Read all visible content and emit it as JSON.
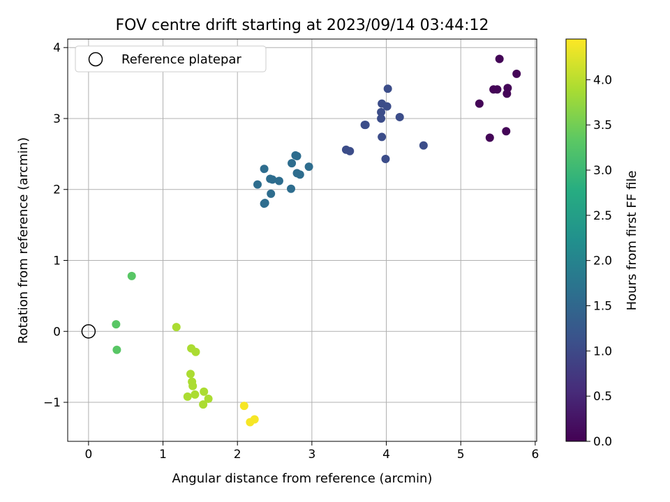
{
  "chart_data": {
    "type": "scatter",
    "title": "FOV centre drift starting at 2023/09/14 03:44:12",
    "xlabel": "Angular distance from reference (arcmin)",
    "ylabel": "Rotation from reference (arcmin)",
    "xlim": [
      -0.28,
      6.02
    ],
    "ylim": [
      -1.55,
      4.12
    ],
    "x_ticks": [
      0,
      1,
      2,
      3,
      4,
      5,
      6
    ],
    "x_tick_labels": [
      "0",
      "1",
      "2",
      "3",
      "4",
      "5",
      "6"
    ],
    "y_ticks": [
      -1,
      0,
      1,
      2,
      3,
      4
    ],
    "y_tick_labels": [
      "−1",
      "0",
      "1",
      "2",
      "3",
      "4"
    ],
    "grid": true,
    "legend": {
      "placement": "top-left",
      "entries": [
        "Reference platepar"
      ]
    },
    "reference_point": {
      "name": "Reference platepar",
      "x": 0,
      "y": 0,
      "marker": "hollow-circle"
    },
    "colorbar": {
      "label": "Hours from first FF file",
      "colormap": "viridis",
      "range": [
        0.0,
        4.45
      ],
      "ticks": [
        0.0,
        0.5,
        1.0,
        1.5,
        2.0,
        2.5,
        3.0,
        3.5,
        4.0
      ],
      "tick_labels": [
        "0.0",
        "0.5",
        "1.0",
        "1.5",
        "2.0",
        "2.5",
        "3.0",
        "3.5",
        "4.0"
      ]
    },
    "points": [
      {
        "x": 5.52,
        "y": 3.84,
        "c": 0.05
      },
      {
        "x": 5.75,
        "y": 3.63,
        "c": 0.05
      },
      {
        "x": 5.44,
        "y": 3.41,
        "c": 0.05
      },
      {
        "x": 5.49,
        "y": 3.41,
        "c": 0.05
      },
      {
        "x": 5.63,
        "y": 3.43,
        "c": 0.05
      },
      {
        "x": 5.62,
        "y": 3.35,
        "c": 0.05
      },
      {
        "x": 5.25,
        "y": 3.21,
        "c": 0.05
      },
      {
        "x": 5.61,
        "y": 2.82,
        "c": 0.05
      },
      {
        "x": 5.39,
        "y": 2.73,
        "c": 0.05
      },
      {
        "x": 4.02,
        "y": 3.42,
        "c": 1.05
      },
      {
        "x": 3.94,
        "y": 3.21,
        "c": 1.05
      },
      {
        "x": 4.01,
        "y": 3.17,
        "c": 1.05
      },
      {
        "x": 3.93,
        "y": 3.09,
        "c": 1.05
      },
      {
        "x": 4.18,
        "y": 3.02,
        "c": 1.05
      },
      {
        "x": 3.93,
        "y": 3.0,
        "c": 1.05
      },
      {
        "x": 3.71,
        "y": 2.91,
        "c": 1.05
      },
      {
        "x": 3.72,
        "y": 2.91,
        "c": 1.05
      },
      {
        "x": 3.94,
        "y": 2.74,
        "c": 1.05
      },
      {
        "x": 4.5,
        "y": 2.62,
        "c": 1.05
      },
      {
        "x": 3.46,
        "y": 2.56,
        "c": 1.05
      },
      {
        "x": 3.51,
        "y": 2.54,
        "c": 1.05
      },
      {
        "x": 3.99,
        "y": 2.43,
        "c": 1.05
      },
      {
        "x": 2.78,
        "y": 2.48,
        "c": 1.6
      },
      {
        "x": 2.8,
        "y": 2.47,
        "c": 1.6
      },
      {
        "x": 2.73,
        "y": 2.37,
        "c": 1.6
      },
      {
        "x": 2.96,
        "y": 2.32,
        "c": 1.6
      },
      {
        "x": 2.36,
        "y": 2.29,
        "c": 1.6
      },
      {
        "x": 2.8,
        "y": 2.23,
        "c": 1.6
      },
      {
        "x": 2.84,
        "y": 2.21,
        "c": 1.6
      },
      {
        "x": 2.44,
        "y": 2.15,
        "c": 1.6
      },
      {
        "x": 2.47,
        "y": 2.14,
        "c": 1.6
      },
      {
        "x": 2.56,
        "y": 2.12,
        "c": 1.6
      },
      {
        "x": 2.27,
        "y": 2.07,
        "c": 1.6
      },
      {
        "x": 2.72,
        "y": 2.01,
        "c": 1.6
      },
      {
        "x": 2.45,
        "y": 1.94,
        "c": 1.6
      },
      {
        "x": 2.36,
        "y": 1.8,
        "c": 1.6
      },
      {
        "x": 2.37,
        "y": 1.81,
        "c": 1.6
      },
      {
        "x": 0.58,
        "y": 0.78,
        "c": 3.3
      },
      {
        "x": 0.37,
        "y": 0.1,
        "c": 3.3
      },
      {
        "x": 0.38,
        "y": -0.26,
        "c": 3.3
      },
      {
        "x": 1.18,
        "y": 0.06,
        "c": 3.9
      },
      {
        "x": 1.38,
        "y": -0.24,
        "c": 3.9
      },
      {
        "x": 1.44,
        "y": -0.29,
        "c": 3.9
      },
      {
        "x": 1.37,
        "y": -0.6,
        "c": 3.9
      },
      {
        "x": 1.39,
        "y": -0.71,
        "c": 3.9
      },
      {
        "x": 1.4,
        "y": -0.77,
        "c": 3.9
      },
      {
        "x": 1.55,
        "y": -0.85,
        "c": 3.9
      },
      {
        "x": 1.43,
        "y": -0.89,
        "c": 3.9
      },
      {
        "x": 1.33,
        "y": -0.92,
        "c": 3.9
      },
      {
        "x": 1.61,
        "y": -0.95,
        "c": 3.9
      },
      {
        "x": 1.54,
        "y": -1.03,
        "c": 3.9
      },
      {
        "x": 2.09,
        "y": -1.05,
        "c": 4.4
      },
      {
        "x": 2.23,
        "y": -1.24,
        "c": 4.4
      },
      {
        "x": 2.17,
        "y": -1.28,
        "c": 4.4
      }
    ]
  }
}
